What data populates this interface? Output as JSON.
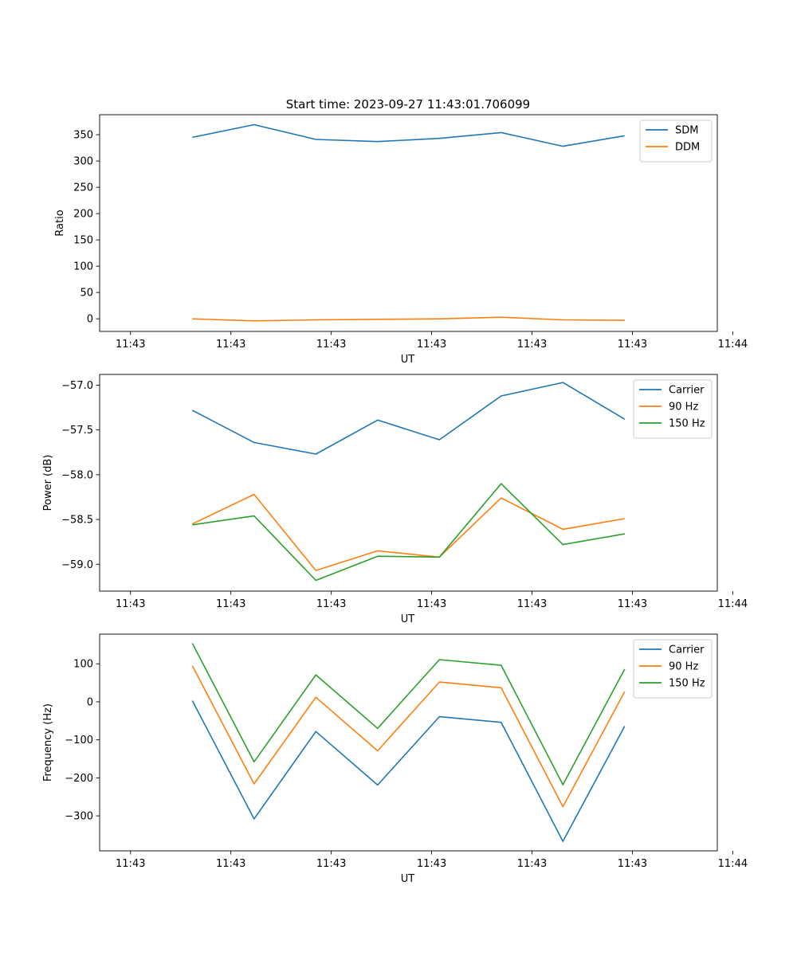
{
  "figure_title": "Start time: 2023-09-27 11:43:01.706099",
  "colors": {
    "blue": "#1f77b4",
    "orange": "#ff7f0e",
    "green": "#2ca02c",
    "axis": "#000000"
  },
  "chart_data": [
    {
      "type": "line",
      "title": "Start time: 2023-09-27 11:43:01.706099",
      "xlabel": "UT",
      "ylabel": "Ratio",
      "xlim": [
        -0.5,
        9.5
      ],
      "ylim": [
        -24,
        388
      ],
      "x": [
        1,
        2,
        3,
        4,
        5,
        6,
        7,
        8
      ],
      "xticks": [
        0,
        1.625,
        3.25,
        4.875,
        6.5,
        8.125,
        9.75
      ],
      "xtick_labels": [
        "11:43",
        "11:43",
        "11:43",
        "11:43",
        "11:43",
        "11:43",
        "11:44"
      ],
      "yticks": [
        0,
        50,
        100,
        150,
        200,
        250,
        300,
        350
      ],
      "ytick_labels": [
        "0",
        "50",
        "100",
        "150",
        "200",
        "250",
        "300",
        "350"
      ],
      "legend": "top-right",
      "series": [
        {
          "name": "SDM",
          "color": "#1f77b4",
          "values": [
            345,
            369,
            341,
            337,
            343,
            354,
            328,
            348
          ]
        },
        {
          "name": "DDM",
          "color": "#ff7f0e",
          "values": [
            0,
            -4,
            -2,
            -1,
            0,
            3,
            -2,
            -3
          ]
        }
      ]
    },
    {
      "type": "line",
      "title": "",
      "xlabel": "UT",
      "ylabel": "Power (dB)",
      "xlim": [
        -0.5,
        9.5
      ],
      "ylim": [
        -59.3,
        -56.88
      ],
      "x": [
        1,
        2,
        3,
        4,
        5,
        6,
        7,
        8
      ],
      "xticks": [
        0,
        1.625,
        3.25,
        4.875,
        6.5,
        8.125,
        9.75
      ],
      "xtick_labels": [
        "11:43",
        "11:43",
        "11:43",
        "11:43",
        "11:43",
        "11:43",
        "11:44"
      ],
      "yticks": [
        -59.0,
        -58.5,
        -58.0,
        -57.5,
        -57.0
      ],
      "ytick_labels": [
        "−59.0",
        "−58.5",
        "−58.0",
        "−57.5",
        "−57.0"
      ],
      "legend": "top-right",
      "series": [
        {
          "name": "Carrier",
          "color": "#1f77b4",
          "values": [
            -57.28,
            -57.64,
            -57.77,
            -57.39,
            -57.61,
            -57.12,
            -56.97,
            -57.38
          ]
        },
        {
          "name": "90 Hz",
          "color": "#ff7f0e",
          "values": [
            -58.55,
            -58.22,
            -59.07,
            -58.85,
            -58.92,
            -58.26,
            -58.61,
            -58.49
          ]
        },
        {
          "name": "150 Hz",
          "color": "#2ca02c",
          "values": [
            -58.56,
            -58.46,
            -59.18,
            -58.91,
            -58.92,
            -58.1,
            -58.78,
            -58.66
          ]
        }
      ]
    },
    {
      "type": "line",
      "title": "",
      "xlabel": "UT",
      "ylabel": "Frequency (Hz)",
      "xlim": [
        -0.5,
        9.5
      ],
      "ylim": [
        -392,
        178
      ],
      "x": [
        1,
        2,
        3,
        4,
        5,
        6,
        7,
        8
      ],
      "xticks": [
        0,
        1.625,
        3.25,
        4.875,
        6.5,
        8.125,
        9.75
      ],
      "xtick_labels": [
        "11:43",
        "11:43",
        "11:43",
        "11:43",
        "11:43",
        "11:43",
        "11:44"
      ],
      "yticks": [
        -300,
        -200,
        -100,
        0,
        100
      ],
      "ytick_labels": [
        "−300",
        "−200",
        "−100",
        "0",
        "100"
      ],
      "legend": "top-right",
      "series": [
        {
          "name": "Carrier",
          "color": "#1f77b4",
          "values": [
            3,
            -308,
            -78,
            -219,
            -39,
            -54,
            -367,
            -64
          ]
        },
        {
          "name": "90 Hz",
          "color": "#ff7f0e",
          "values": [
            95,
            -216,
            12,
            -129,
            52,
            37,
            -276,
            27
          ]
        },
        {
          "name": "150 Hz",
          "color": "#2ca02c",
          "values": [
            154,
            -158,
            71,
            -70,
            111,
            96,
            -218,
            86
          ]
        }
      ]
    }
  ]
}
